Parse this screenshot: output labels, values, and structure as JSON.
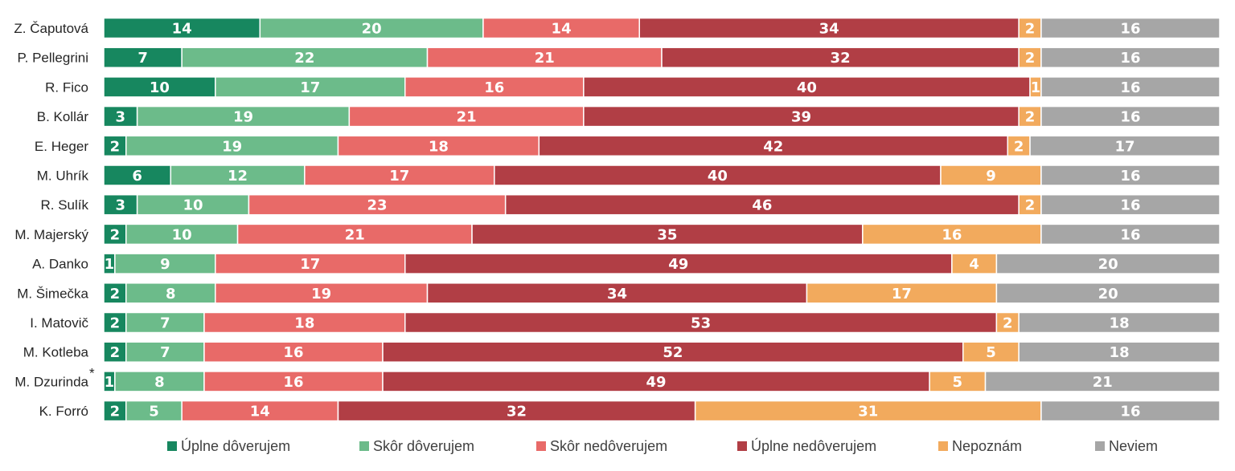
{
  "chart_data": {
    "type": "bar",
    "orientation": "horizontal",
    "stacked": true,
    "title": "",
    "xlabel": "",
    "ylabel": "",
    "xlim": [
      0,
      100
    ],
    "grid": false,
    "legend_position": "bottom",
    "categories": [
      "Z. Čaputová",
      "P. Pellegrini",
      "R. Fico",
      "B. Kollár",
      "E. Heger",
      "M. Uhrík",
      "R. Sulík",
      "M. Majerský",
      "A. Danko",
      "M. Šimečka",
      "I. Matovič",
      "M. Kotleba",
      "M. Dzurinda",
      "K. Forró"
    ],
    "category_marks": [
      "",
      "",
      "",
      "",
      "",
      "",
      "",
      "",
      "",
      "",
      "",
      "",
      "*",
      ""
    ],
    "series": [
      {
        "name": "Úplne dôverujem",
        "color": "#17875f",
        "values": [
          14,
          7,
          10,
          3,
          2,
          6,
          3,
          2,
          1,
          2,
          2,
          2,
          1,
          2
        ]
      },
      {
        "name": "Skôr dôverujem",
        "color": "#6cbb8a",
        "values": [
          20,
          22,
          17,
          19,
          19,
          12,
          10,
          10,
          9,
          8,
          7,
          7,
          8,
          5
        ]
      },
      {
        "name": "Skôr nedôverujem",
        "color": "#e86a68",
        "values": [
          14,
          21,
          16,
          21,
          18,
          17,
          23,
          21,
          17,
          19,
          18,
          16,
          16,
          14
        ]
      },
      {
        "name": "Úplne nedôverujem",
        "color": "#b13e45",
        "values": [
          34,
          32,
          40,
          39,
          42,
          40,
          46,
          35,
          49,
          34,
          53,
          52,
          49,
          32
        ]
      },
      {
        "name": "Nepoznám",
        "color": "#f2aa5d",
        "values": [
          2,
          2,
          1,
          2,
          2,
          9,
          2,
          16,
          4,
          17,
          2,
          5,
          5,
          31
        ]
      },
      {
        "name": "Neviem",
        "color": "#a6a6a6",
        "values": [
          16,
          16,
          16,
          16,
          17,
          16,
          16,
          16,
          20,
          20,
          18,
          18,
          21,
          16
        ]
      }
    ]
  }
}
